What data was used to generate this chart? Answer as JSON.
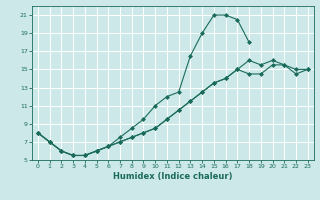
{
  "xlabel": "Humidex (Indice chaleur)",
  "bg_color": "#cce8e8",
  "grid_color": "#ffffff",
  "line_color": "#1a6b5a",
  "xlim": [
    -0.5,
    23.5
  ],
  "ylim": [
    5,
    22
  ],
  "xticks": [
    0,
    1,
    2,
    3,
    4,
    5,
    6,
    7,
    8,
    9,
    10,
    11,
    12,
    13,
    14,
    15,
    16,
    17,
    18,
    19,
    20,
    21,
    22,
    23
  ],
  "yticks": [
    5,
    7,
    9,
    11,
    13,
    15,
    17,
    19,
    21
  ],
  "curve1_x": [
    0,
    1,
    2,
    3,
    4,
    5,
    6,
    7,
    8,
    9,
    10,
    11,
    12,
    13,
    14,
    15,
    16,
    17,
    18
  ],
  "curve1_y": [
    8.0,
    7.0,
    6.0,
    5.5,
    5.5,
    6.0,
    6.5,
    7.5,
    8.5,
    9.5,
    11.0,
    12.0,
    12.5,
    16.5,
    19.0,
    21.0,
    21.0,
    20.5,
    18.0
  ],
  "curve2_x": [
    0,
    1,
    2,
    3,
    4,
    5,
    6,
    7,
    8,
    9,
    10,
    11,
    12,
    13,
    14,
    15,
    16,
    17,
    18,
    19,
    20,
    21,
    22,
    23
  ],
  "curve2_y": [
    8.0,
    7.0,
    6.0,
    5.5,
    5.5,
    6.0,
    6.5,
    7.0,
    7.5,
    8.0,
    8.5,
    9.5,
    10.5,
    11.5,
    12.5,
    13.5,
    14.0,
    15.0,
    16.0,
    15.5,
    16.0,
    15.5,
    15.0,
    15.0
  ],
  "curve3_x": [
    0,
    1,
    2,
    3,
    4,
    5,
    6,
    7,
    8,
    9,
    10,
    11,
    12,
    13,
    14,
    15,
    16,
    17,
    18,
    19,
    20,
    21,
    22,
    23
  ],
  "curve3_y": [
    8.0,
    7.0,
    6.0,
    5.5,
    5.5,
    6.0,
    6.5,
    7.0,
    7.5,
    8.0,
    8.5,
    9.5,
    10.5,
    11.5,
    12.5,
    13.5,
    14.0,
    15.0,
    14.5,
    14.5,
    15.5,
    15.5,
    14.5,
    15.0
  ]
}
